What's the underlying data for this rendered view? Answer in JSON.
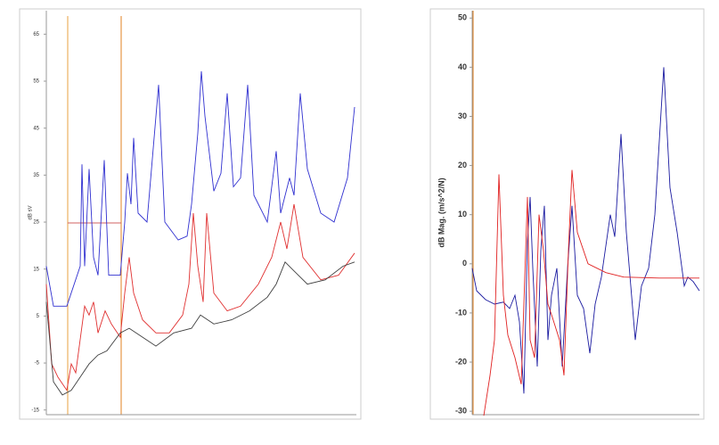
{
  "chart_data": [
    {
      "type": "line",
      "ylabel": "dB sV",
      "ylim": [
        -16,
        70
      ],
      "yticks": [
        -15,
        -5,
        5,
        15,
        25,
        35,
        45,
        55,
        65
      ],
      "xlim": [
        0,
        348
      ],
      "series": [
        {
          "color": "#3030d0",
          "x": [
            0,
            8,
            23,
            38,
            40,
            43,
            48,
            53,
            58,
            65,
            70,
            83,
            88,
            91,
            95,
            98,
            103,
            113,
            126,
            133,
            148,
            158,
            163,
            170,
            174,
            178,
            188,
            196,
            203,
            210,
            218,
            226,
            233,
            248,
            258,
            263,
            273,
            278,
            285,
            293,
            308,
            323,
            338,
            346
          ],
          "values": [
            15.6,
            7.1,
            7.1,
            15.6,
            37.3,
            15.6,
            36.3,
            17.5,
            13.7,
            38.2,
            13.7,
            13.7,
            25,
            35.4,
            28.8,
            42.9,
            26.9,
            25,
            54.2,
            25,
            21.2,
            22,
            28.8,
            43.9,
            57.1,
            47.6,
            31.6,
            35.4,
            52.4,
            32.5,
            34.4,
            54.2,
            30.7,
            25,
            40.1,
            26.9,
            34.4,
            30.7,
            52.4,
            36.3,
            26.9,
            25,
            34.4,
            49.5
          ]
        },
        {
          "color": "#e03030",
          "x": [
            0,
            6,
            13,
            23,
            28,
            33,
            43,
            48,
            53,
            58,
            66,
            73,
            83,
            88,
            93,
            98,
            108,
            123,
            138,
            153,
            160,
            165,
            170,
            176,
            180,
            188,
            203,
            218,
            238,
            253,
            263,
            270,
            278,
            288,
            308,
            328,
            346
          ],
          "values": [
            11.8,
            -5.2,
            -8,
            -10.8,
            -5.2,
            -7.1,
            7.1,
            5.2,
            8,
            1.4,
            6.1,
            3.3,
            0.5,
            9.9,
            17.5,
            9.9,
            4.2,
            1.4,
            1.4,
            5.2,
            11.8,
            26.9,
            15.6,
            8,
            26.9,
            9.9,
            6.1,
            7.1,
            11.8,
            17.5,
            25,
            19.3,
            28.8,
            17.5,
            12.7,
            13.7,
            18.4
          ]
        },
        {
          "color": "#404040",
          "x": [
            0,
            8,
            18,
            28,
            38,
            48,
            58,
            68,
            83,
            93,
            108,
            123,
            143,
            163,
            173,
            188,
            208,
            228,
            248,
            258,
            268,
            278,
            293,
            313,
            333,
            346
          ],
          "values": [
            8,
            -9,
            -11.8,
            -10.8,
            -8,
            -5.2,
            -3.3,
            -2.4,
            1.4,
            2.4,
            0.5,
            -1.4,
            1.4,
            2.4,
            5.2,
            3.3,
            4.2,
            6.1,
            9,
            11.8,
            16.5,
            14.6,
            11.8,
            12.7,
            15.6,
            16.5
          ]
        }
      ]
    },
    {
      "type": "line",
      "ylabel": "dB Mag. (m/s^2/N)",
      "ylim": [
        -30.7,
        51.5
      ],
      "yticks": [
        -30,
        -20,
        -10,
        0,
        10,
        20,
        30,
        40,
        50
      ],
      "xlim": [
        0,
        255
      ],
      "series": [
        {
          "color": "#1a1aa0",
          "x": [
            0,
            5,
            15,
            25,
            35,
            42,
            48,
            53,
            58,
            62,
            65,
            68,
            73,
            77,
            81,
            85,
            89,
            95,
            101,
            107,
            112,
            118,
            125,
            132,
            138,
            145,
            155,
            160,
            167,
            173,
            183,
            190,
            198,
            205,
            215,
            222,
            230,
            238,
            242,
            248,
            255
          ],
          "values": [
            -0.9,
            -5.5,
            -7.3,
            -8.2,
            -7.8,
            -9.1,
            -6.4,
            -11.8,
            -26.4,
            4.5,
            13.6,
            -0.9,
            -20.9,
            2.7,
            11.8,
            -15.5,
            -6.4,
            -0.9,
            -20.9,
            -0.9,
            11.8,
            -6.4,
            -9.1,
            -18.2,
            -8.2,
            -2.7,
            10,
            5.5,
            26.4,
            6.4,
            -15.5,
            -4.5,
            -0.9,
            10,
            40,
            15.5,
            6.4,
            -4.5,
            -2.7,
            -3.6,
            -5.5
          ]
        },
        {
          "color": "#e02020",
          "x": [
            13,
            20,
            25,
            30,
            35,
            40,
            48,
            55,
            62,
            65,
            70,
            75,
            80,
            85,
            90,
            98,
            103,
            108,
            112,
            118,
            130,
            150,
            170,
            210,
            255
          ],
          "values": [
            -30.9,
            -22.7,
            -15.5,
            18.2,
            -6.4,
            -14.5,
            -19.1,
            -24.5,
            13.6,
            -15.5,
            -19.1,
            10,
            2.7,
            -8.2,
            -10.9,
            -15.5,
            -22.7,
            2.7,
            19.1,
            6.4,
            0,
            -1.8,
            -2.7,
            -2.9,
            -2.9
          ]
        }
      ]
    }
  ]
}
